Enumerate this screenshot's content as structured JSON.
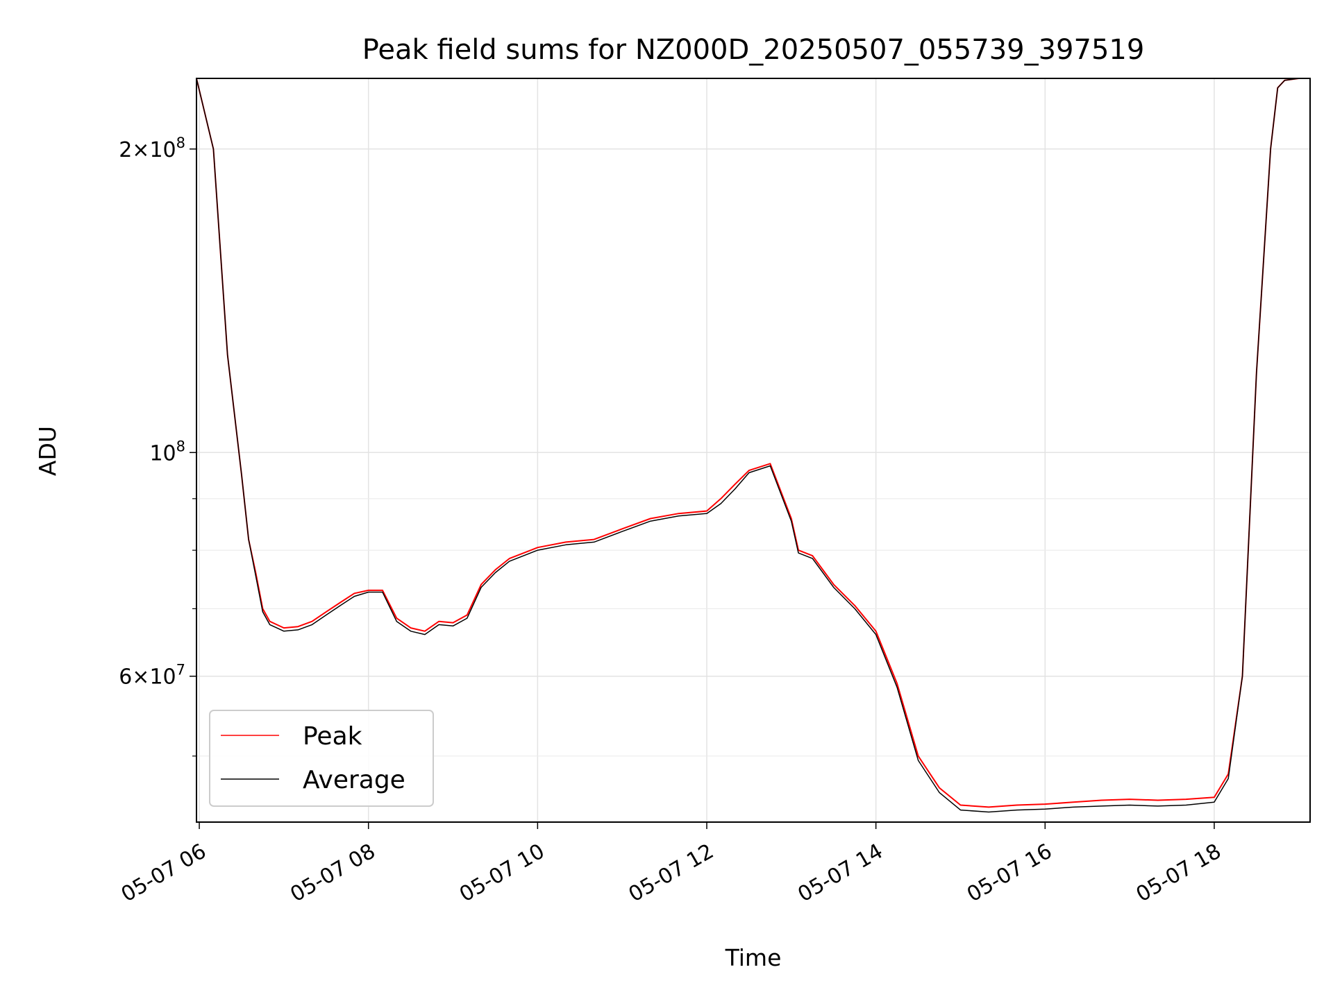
{
  "chart_data": {
    "type": "line",
    "title": "Peak field sums for NZ000D_20250507_055739_397519",
    "xlabel": "Time",
    "ylabel": "ADU",
    "y_scale": "log",
    "ylim": [
      43000000,
      235000000
    ],
    "xlim": [
      "05-07 05:58",
      "05-07 19:08"
    ],
    "grid": true,
    "legend_position": "lower-left",
    "x_ticks": [
      "05-07 06",
      "05-07 08",
      "05-07 10",
      "05-07 12",
      "05-07 14",
      "05-07 16",
      "05-07 18"
    ],
    "y_ticks": [
      {
        "value": 60000000,
        "base": "6",
        "exp": "7"
      },
      {
        "value": 100000000,
        "base": "",
        "exp": "8"
      },
      {
        "value": 200000000,
        "base": "2",
        "exp": "8"
      }
    ],
    "y_minor_ticks": [
      50000000,
      70000000,
      80000000,
      90000000
    ],
    "x": [
      "05:58",
      "06:10",
      "06:20",
      "06:30",
      "06:35",
      "06:40",
      "06:45",
      "06:50",
      "06:55",
      "07:00",
      "07:10",
      "07:20",
      "07:30",
      "07:40",
      "07:50",
      "08:00",
      "08:10",
      "08:20",
      "08:30",
      "08:40",
      "08:50",
      "09:00",
      "09:10",
      "09:20",
      "09:30",
      "09:40",
      "10:00",
      "10:20",
      "10:40",
      "11:00",
      "11:20",
      "11:40",
      "12:00",
      "12:10",
      "12:20",
      "12:30",
      "12:45",
      "13:00",
      "13:05",
      "13:15",
      "13:30",
      "13:45",
      "14:00",
      "14:15",
      "14:30",
      "14:45",
      "15:00",
      "15:20",
      "15:40",
      "16:00",
      "16:20",
      "16:40",
      "17:00",
      "17:20",
      "17:40",
      "18:00",
      "18:10",
      "18:20",
      "18:30",
      "18:40",
      "18:45",
      "18:50",
      "19:00",
      "19:08"
    ],
    "series": [
      {
        "name": "Peak",
        "color": "#ff0000",
        "values": [
          235000000,
          200000000,
          125000000,
          95000000,
          82000000,
          76000000,
          70000000,
          68000000,
          67500000,
          67000000,
          67200000,
          68000000,
          69500000,
          71000000,
          72500000,
          73000000,
          73000000,
          68500000,
          67000000,
          66500000,
          68000000,
          67800000,
          69000000,
          74000000,
          76500000,
          78500000,
          80500000,
          81500000,
          82000000,
          84000000,
          86000000,
          87000000,
          87500000,
          90000000,
          93000000,
          96000000,
          97500000,
          86000000,
          80000000,
          79000000,
          74000000,
          70500000,
          66500000,
          59000000,
          50000000,
          46500000,
          44700000,
          44500000,
          44700000,
          44800000,
          45000000,
          45200000,
          45300000,
          45200000,
          45300000,
          45500000,
          48000000,
          60000000,
          120000000,
          200000000,
          230000000,
          234000000,
          235000000,
          235000000
        ]
      },
      {
        "name": "Average",
        "color": "#000000",
        "values": [
          235000000,
          200000000,
          125000000,
          95000000,
          82000000,
          75500000,
          69500000,
          67500000,
          67000000,
          66500000,
          66700000,
          67500000,
          69000000,
          70500000,
          72000000,
          72700000,
          72700000,
          68000000,
          66500000,
          66000000,
          67500000,
          67300000,
          68500000,
          73500000,
          76000000,
          78000000,
          80000000,
          81000000,
          81500000,
          83500000,
          85500000,
          86500000,
          87000000,
          89000000,
          92000000,
          95500000,
          97000000,
          85500000,
          79500000,
          78500000,
          73500000,
          70000000,
          66000000,
          58500000,
          49500000,
          46000000,
          44200000,
          44000000,
          44200000,
          44300000,
          44500000,
          44600000,
          44700000,
          44600000,
          44700000,
          45000000,
          47500000,
          60000000,
          120000000,
          200000000,
          230000000,
          234000000,
          235000000,
          235000000
        ]
      }
    ]
  }
}
